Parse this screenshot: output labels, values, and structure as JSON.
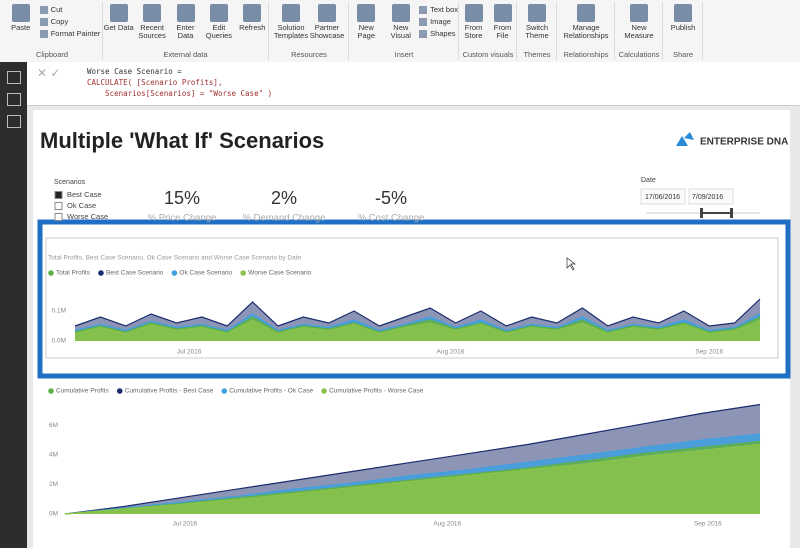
{
  "ribbon": {
    "groups": [
      {
        "name": "Clipboard",
        "buttons": [
          "Paste"
        ],
        "small": [
          "Cut",
          "Copy",
          "Format Painter"
        ]
      },
      {
        "name": "External data",
        "buttons": [
          "Get Data",
          "Recent Sources",
          "Enter Data",
          "Edit Queries",
          "Refresh"
        ],
        "small": []
      },
      {
        "name": "Resources",
        "buttons": [
          "Solution Templates",
          "Partner Showcase"
        ],
        "small": []
      },
      {
        "name": "Insert",
        "buttons": [
          "New Page",
          "New Visual"
        ],
        "small": [
          "Text box",
          "Image",
          "Shapes"
        ]
      },
      {
        "name": "Custom visuals",
        "buttons": [
          "From Store",
          "From File"
        ],
        "small": []
      },
      {
        "name": "Themes",
        "buttons": [
          "Switch Theme"
        ],
        "small": []
      },
      {
        "name": "Relationships",
        "buttons": [
          "Manage Relationships"
        ],
        "small": []
      },
      {
        "name": "Calculations",
        "buttons": [
          "New Measure"
        ],
        "small": []
      },
      {
        "name": "Share",
        "buttons": [
          "Publish"
        ],
        "small": []
      }
    ]
  },
  "formula": {
    "lines": [
      "Worse Case Scenario =",
      "CALCULATE( [Scenario Profits],",
      "    Scenarios[Scenarios] = \"Worse Case\" )"
    ]
  },
  "report": {
    "title": "Multiple 'What If' Scenarios",
    "logo": "ENTERPRISE DNA",
    "slicer": {
      "title": "Scenarios",
      "items": [
        "Best Case",
        "Ok Case",
        "Worse Case"
      ],
      "selected": 0
    },
    "cards": [
      {
        "value": "15%",
        "label": "% Price Change"
      },
      {
        "value": "2%",
        "label": "% Demand Change"
      },
      {
        "value": "-5%",
        "label": "% Cost Change"
      }
    ],
    "date_slicer": {
      "title": "Date",
      "start": "17/06/2016",
      "end": "7/09/2016"
    }
  },
  "charts": [
    {
      "type": "area",
      "title": "Total Profits, Best Case Scenario, Ok Case Scenario and Worse Case Scenario by Date",
      "xlim": [
        0,
        27
      ],
      "xticks": [
        {
          "value": 4.5,
          "label": "Jul 2016"
        },
        {
          "value": 14.8,
          "label": "Aug 2016"
        },
        {
          "value": 25,
          "label": "Sep 2016"
        }
      ],
      "ylim": [
        0,
        0.18
      ],
      "yticks": [
        {
          "value": 0,
          "label": "0.0M"
        },
        {
          "value": 0.1,
          "label": "0.1M"
        }
      ],
      "series": [
        {
          "name": "Total Profits",
          "color": "#5fb04a",
          "values": [
            0.03,
            0.05,
            0.03,
            0.06,
            0.04,
            0.05,
            0.03,
            0.08,
            0.03,
            0.05,
            0.04,
            0.06,
            0.03,
            0.05,
            0.07,
            0.04,
            0.06,
            0.03,
            0.05,
            0.04,
            0.07,
            0.03,
            0.05,
            0.04,
            0.06,
            0.03,
            0.04,
            0.08
          ]
        },
        {
          "name": "Best Case Scenario",
          "color": "#1b2c6e",
          "values": [
            0.05,
            0.08,
            0.05,
            0.09,
            0.06,
            0.08,
            0.05,
            0.13,
            0.05,
            0.08,
            0.06,
            0.1,
            0.05,
            0.08,
            0.11,
            0.06,
            0.1,
            0.05,
            0.08,
            0.06,
            0.11,
            0.05,
            0.08,
            0.06,
            0.1,
            0.05,
            0.06,
            0.14
          ]
        },
        {
          "name": "Ok Case Scenario",
          "color": "#3fa0e0",
          "values": [
            0.035,
            0.055,
            0.035,
            0.065,
            0.045,
            0.055,
            0.035,
            0.09,
            0.035,
            0.055,
            0.045,
            0.07,
            0.035,
            0.055,
            0.08,
            0.045,
            0.07,
            0.035,
            0.055,
            0.045,
            0.08,
            0.035,
            0.055,
            0.045,
            0.07,
            0.035,
            0.045,
            0.09
          ]
        },
        {
          "name": "Worse Case Scenario",
          "color": "#8bc34a",
          "values": [
            0.025,
            0.045,
            0.025,
            0.055,
            0.035,
            0.045,
            0.025,
            0.07,
            0.025,
            0.045,
            0.035,
            0.055,
            0.025,
            0.045,
            0.06,
            0.035,
            0.055,
            0.025,
            0.045,
            0.035,
            0.06,
            0.025,
            0.045,
            0.035,
            0.055,
            0.025,
            0.035,
            0.07
          ]
        }
      ]
    },
    {
      "type": "area",
      "xlim": [
        0,
        12
      ],
      "xticks": [
        {
          "value": 2.07,
          "label": "Jul 2016"
        },
        {
          "value": 6.6,
          "label": "Aug 2016"
        },
        {
          "value": 11.1,
          "label": "Sep 2016"
        }
      ],
      "ylim": [
        0,
        7.5
      ],
      "yticks": [
        {
          "value": 0,
          "label": "0M"
        },
        {
          "value": 2,
          "label": "2M"
        },
        {
          "value": 4,
          "label": "4M"
        },
        {
          "value": 6,
          "label": "6M"
        }
      ],
      "series": [
        {
          "name": "Cumulative Profits",
          "color": "#5fb04a",
          "values": [
            0,
            0.35,
            0.7,
            1.1,
            1.5,
            1.9,
            2.3,
            2.7,
            3.1,
            3.6,
            4.1,
            4.5,
            4.9
          ]
        },
        {
          "name": "Cumulative Profits - Best Case",
          "color": "#1b2c6e",
          "values": [
            0,
            0.5,
            1.1,
            1.7,
            2.3,
            2.9,
            3.5,
            4.1,
            4.7,
            5.4,
            6.1,
            6.8,
            7.4
          ]
        },
        {
          "name": "Cumulative Profits - Ok Case",
          "color": "#3fa0e0",
          "values": [
            0,
            0.4,
            0.8,
            1.2,
            1.7,
            2.1,
            2.6,
            3.0,
            3.5,
            4.0,
            4.5,
            5.0,
            5.4
          ]
        },
        {
          "name": "Cumulative Profits - Worse Case",
          "color": "#8bc34a",
          "values": [
            0,
            0.33,
            0.65,
            1.0,
            1.4,
            1.8,
            2.2,
            2.6,
            3.0,
            3.4,
            3.9,
            4.3,
            4.7
          ]
        }
      ]
    }
  ]
}
